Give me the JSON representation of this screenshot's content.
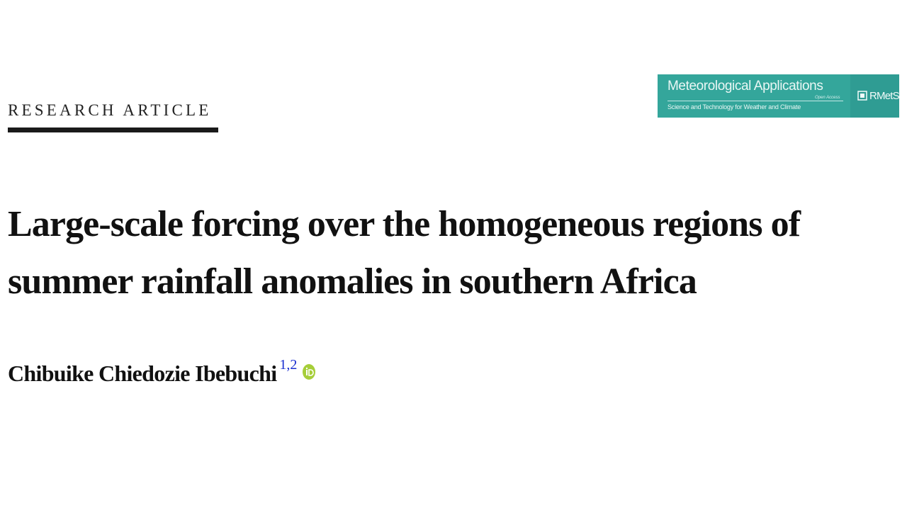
{
  "header": {
    "article_type": "RESEARCH ARTICLE"
  },
  "journal": {
    "name": "Meteorological Applications",
    "access_label": "Open Access",
    "subtitle": "Science and Technology for Weather and Climate",
    "society_name": "RMetS",
    "society_icon": "rmets-logo-icon",
    "colors": {
      "banner": "#34a69b",
      "banner_dark": "#2f9c93"
    }
  },
  "paper": {
    "title_line_1": "Large-scale forcing over the homogeneous regions of",
    "title_line_2": "summer rainfall anomalies in southern Africa"
  },
  "author": {
    "name": "Chibuike Chiedozie Ibebuchi",
    "affiliations": "1,2",
    "orcid_icon": "orcid-icon",
    "colors": {
      "affiliation_link": "#1a2fd0",
      "orcid": "#a6ce39"
    }
  }
}
